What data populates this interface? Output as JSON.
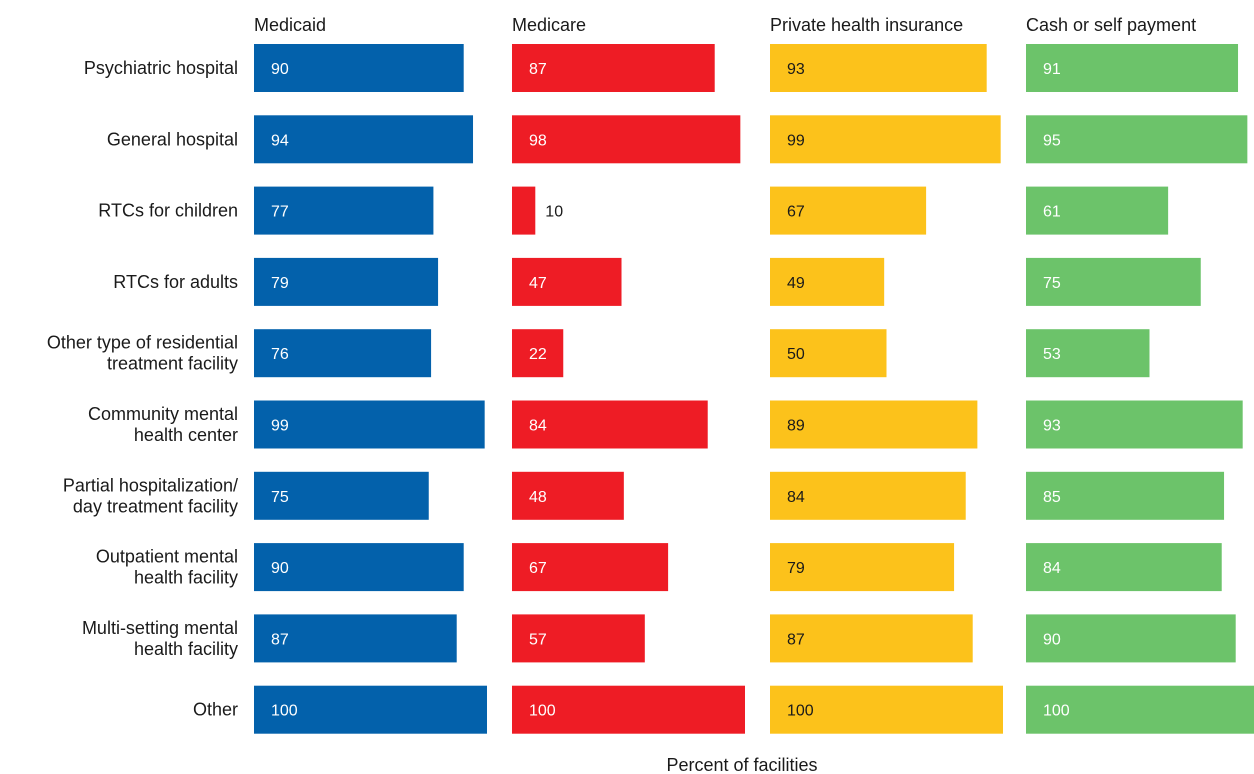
{
  "chart_data": {
    "type": "bar",
    "orientation": "horizontal",
    "layout": "small-multiples",
    "xlabel": "Percent of facilities",
    "xlim": [
      0,
      100
    ],
    "grid": false,
    "legend": "none",
    "categories": [
      "Psychiatric hospital",
      "General hospital",
      "RTCs for children",
      "RTCs for adults",
      "Other type of residential treatment facility",
      "Community mental health center",
      "Partial hospitalization/ day treatment facility",
      "Outpatient mental health facility",
      "Multi-setting mental health facility",
      "Other"
    ],
    "category_lines": [
      [
        "Psychiatric hospital"
      ],
      [
        "General hospital"
      ],
      [
        "RTCs for children"
      ],
      [
        "RTCs for adults"
      ],
      [
        "Other type of residential",
        "treatment facility"
      ],
      [
        "Community mental",
        "health center"
      ],
      [
        "Partial hospitalization/",
        "day treatment facility"
      ],
      [
        "Outpatient mental",
        "health facility"
      ],
      [
        "Multi-setting mental",
        "health facility"
      ],
      [
        "Other"
      ]
    ],
    "series": [
      {
        "name": "Medicaid",
        "color": "#0361ab",
        "values": [
          90,
          94,
          77,
          79,
          76,
          99,
          75,
          90,
          87,
          100
        ]
      },
      {
        "name": "Medicare",
        "color": "#ee1c25",
        "values": [
          87,
          98,
          10,
          47,
          22,
          84,
          48,
          67,
          57,
          100
        ]
      },
      {
        "name": "Private health insurance",
        "color": "#fcc21b",
        "values": [
          93,
          99,
          67,
          49,
          50,
          89,
          84,
          79,
          87,
          100
        ]
      },
      {
        "name": "Cash or self payment",
        "color": "#6cc36a",
        "values": [
          91,
          95,
          61,
          75,
          53,
          93,
          85,
          84,
          90,
          100
        ]
      }
    ]
  }
}
